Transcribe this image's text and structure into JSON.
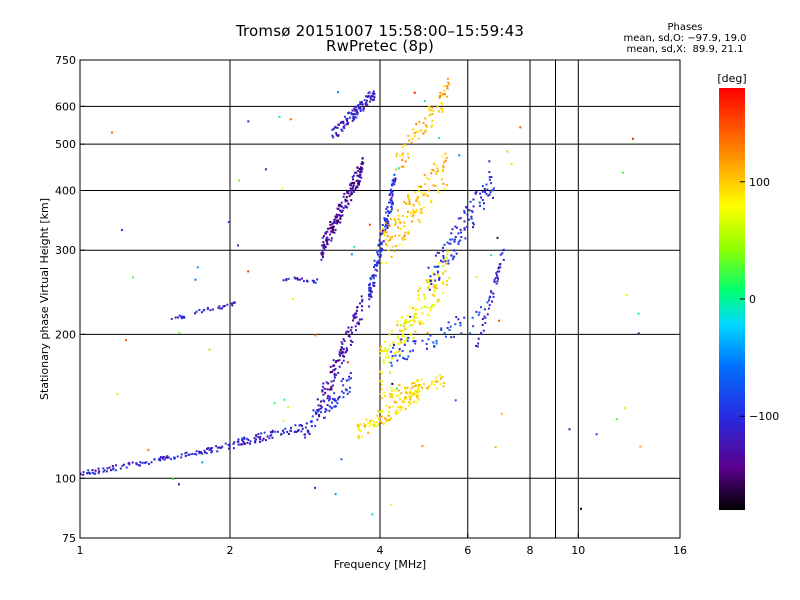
{
  "figure": {
    "title_line1": "Tromsø 20151007 15:58:00–15:59:43",
    "title_line2": "RwPretec (8p)",
    "phase_stats": {
      "heading": "Phases",
      "line_o": "mean, sd,O: −97.9, 19.0",
      "line_x": "mean, sd,X:  89.9, 21.1"
    }
  },
  "chart_data": {
    "type": "scatter",
    "xlabel": "Frequency [MHz]",
    "ylabel": "Stationary phase Virtual Height [km]",
    "xscale": "log",
    "yscale": "log",
    "xlim": [
      1,
      16
    ],
    "ylim": [
      75,
      750
    ],
    "xticks": [
      1,
      2,
      4,
      6,
      8,
      10,
      16
    ],
    "xtick_labels": [
      "1",
      "2",
      "4",
      "6",
      "8",
      "10",
      "16"
    ],
    "xgrid": [
      2,
      4,
      6,
      8,
      9,
      10
    ],
    "yticks": [
      75,
      100,
      200,
      300,
      400,
      500,
      600,
      750
    ],
    "ytick_labels": [
      "75",
      "100",
      "200",
      "300",
      "400",
      "500",
      "600",
      "750"
    ],
    "ygrid": [
      100,
      200,
      300,
      400,
      500,
      600
    ],
    "grid": true,
    "colorbar": {
      "label": "[deg]",
      "ticks": [
        100,
        0,
        -100
      ],
      "tick_labels": [
        "100",
        "0",
        "−100"
      ],
      "range": [
        -180,
        180
      ],
      "colormap": "rainbow"
    },
    "segments": [
      {
        "f0": 1.0,
        "f1": 1.8,
        "h0": 102,
        "h1": 114,
        "n": 90,
        "phase": -110,
        "sh": 0.012
      },
      {
        "f0": 1.8,
        "f1": 2.8,
        "h0": 114,
        "h1": 128,
        "n": 90,
        "phase": -110,
        "sh": 0.02
      },
      {
        "f0": 2.8,
        "f1": 3.5,
        "h0": 125,
        "h1": 160,
        "n": 70,
        "phase": -100,
        "sh": 0.05
      },
      {
        "f0": 1.5,
        "f1": 1.62,
        "h0": 216,
        "h1": 218,
        "n": 10,
        "phase": -110,
        "sh": 0.008
      },
      {
        "f0": 1.7,
        "f1": 2.05,
        "h0": 222,
        "h1": 232,
        "n": 22,
        "phase": -115,
        "sh": 0.01
      },
      {
        "f0": 2.55,
        "f1": 3.0,
        "h0": 262,
        "h1": 258,
        "n": 18,
        "phase": -110,
        "sh": 0.01
      },
      {
        "f0": 3.05,
        "f1": 3.7,
        "h0": 300,
        "h1": 450,
        "n": 170,
        "phase": -135,
        "sh": 0.05
      },
      {
        "f0": 3.0,
        "f1": 3.7,
        "h0": 140,
        "h1": 230,
        "n": 110,
        "phase": -125,
        "sh": 0.06
      },
      {
        "f0": 3.2,
        "f1": 3.9,
        "h0": 520,
        "h1": 640,
        "n": 100,
        "phase": -110,
        "sh": 0.03
      },
      {
        "f0": 3.8,
        "f1": 4.3,
        "h0": 240,
        "h1": 420,
        "n": 130,
        "phase": -100,
        "sh": 0.06
      },
      {
        "f0": 3.6,
        "f1": 4.8,
        "h0": 125,
        "h1": 150,
        "n": 110,
        "phase": 90,
        "sh": 0.04
      },
      {
        "f0": 4.0,
        "f1": 5.4,
        "h0": 150,
        "h1": 160,
        "n": 60,
        "phase": 95,
        "sh": 0.03
      },
      {
        "f0": 4.0,
        "f1": 5.5,
        "h0": 170,
        "h1": 280,
        "n": 150,
        "phase": 85,
        "sh": 0.1
      },
      {
        "f0": 4.0,
        "f1": 5.5,
        "h0": 300,
        "h1": 450,
        "n": 130,
        "phase": 100,
        "sh": 0.1
      },
      {
        "f0": 4.3,
        "f1": 5.5,
        "h0": 450,
        "h1": 650,
        "n": 70,
        "phase": 110,
        "sh": 0.06
      },
      {
        "f0": 5.0,
        "f1": 6.8,
        "h0": 260,
        "h1": 420,
        "n": 110,
        "phase": -100,
        "sh": 0.08
      },
      {
        "f0": 6.2,
        "f1": 7.1,
        "h0": 180,
        "h1": 300,
        "n": 45,
        "phase": -110,
        "sh": 0.04
      },
      {
        "f0": 4.2,
        "f1": 6.5,
        "h0": 180,
        "h1": 220,
        "n": 60,
        "phase": -90,
        "sh": 0.06
      },
      {
        "f0": 1.1,
        "f1": 14.0,
        "h0": 80,
        "h1": 650,
        "n": 70,
        "phase": 0,
        "sh": 0.0,
        "scatter": true
      }
    ]
  }
}
